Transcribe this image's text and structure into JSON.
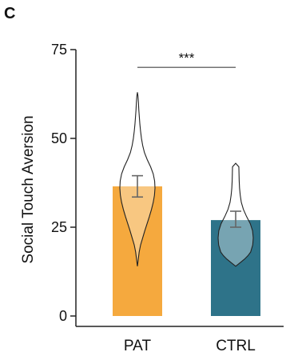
{
  "panel_label": "C",
  "colors": {
    "PAT": "#f5a93e",
    "CTRL": "#2e7389",
    "axis": "#222222",
    "violin_stroke": "#222222",
    "error_bar": "#666666"
  },
  "chart_data": {
    "type": "bar",
    "ylabel": "Social Touch Aversion",
    "ylim": [
      0,
      75
    ],
    "yticks": [
      "0",
      "25",
      "50",
      "75"
    ],
    "categories": [
      "PAT",
      "CTRL"
    ],
    "values": [
      36.5,
      27
    ],
    "error": [
      [
        33.5,
        39.5
      ],
      [
        25,
        29.5
      ]
    ],
    "violins": [
      {
        "category": "PAT",
        "ymin": 14,
        "ymax": 63,
        "density": [
          [
            14,
            0.0
          ],
          [
            16,
            0.05
          ],
          [
            18,
            0.1
          ],
          [
            20,
            0.18
          ],
          [
            22,
            0.3
          ],
          [
            24,
            0.42
          ],
          [
            26,
            0.55
          ],
          [
            28,
            0.68
          ],
          [
            30,
            0.8
          ],
          [
            32,
            0.9
          ],
          [
            34,
            0.97
          ],
          [
            36,
            1.0
          ],
          [
            38,
            0.98
          ],
          [
            40,
            0.9
          ],
          [
            42,
            0.75
          ],
          [
            44,
            0.56
          ],
          [
            46,
            0.4
          ],
          [
            48,
            0.3
          ],
          [
            50,
            0.23
          ],
          [
            52,
            0.18
          ],
          [
            54,
            0.14
          ],
          [
            56,
            0.11
          ],
          [
            58,
            0.08
          ],
          [
            60,
            0.06
          ],
          [
            62,
            0.03
          ],
          [
            63,
            0.0
          ]
        ]
      },
      {
        "category": "CTRL",
        "ymin": 14,
        "ymax": 43,
        "density": [
          [
            14,
            0.0
          ],
          [
            15,
            0.25
          ],
          [
            16,
            0.5
          ],
          [
            17,
            0.7
          ],
          [
            18,
            0.85
          ],
          [
            20,
            0.97
          ],
          [
            22,
            1.0
          ],
          [
            24,
            0.96
          ],
          [
            26,
            0.83
          ],
          [
            28,
            0.62
          ],
          [
            30,
            0.44
          ],
          [
            32,
            0.32
          ],
          [
            34,
            0.26
          ],
          [
            36,
            0.22
          ],
          [
            38,
            0.2
          ],
          [
            40,
            0.19
          ],
          [
            42,
            0.18
          ],
          [
            43,
            0.0
          ]
        ]
      }
    ],
    "significance": {
      "between": [
        "PAT",
        "CTRL"
      ],
      "y": 70,
      "label": "***"
    }
  }
}
